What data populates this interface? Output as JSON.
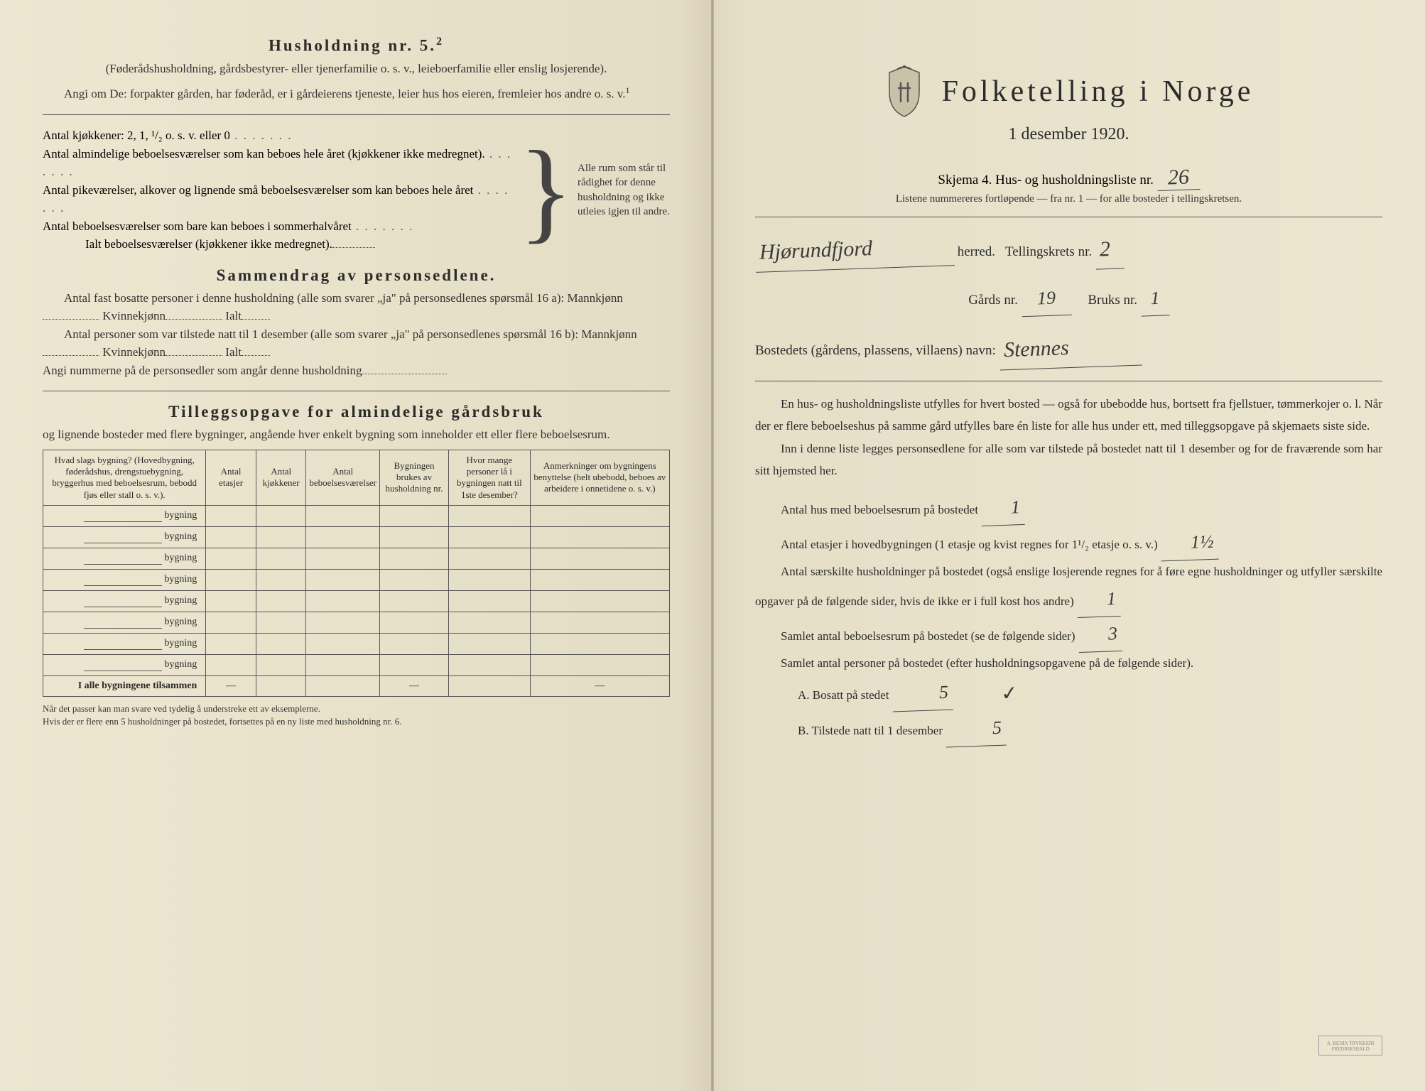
{
  "left": {
    "title": "Husholdning nr. 5.",
    "title_sup": "2",
    "subtitle": "(Føderådshusholdning, gårdsbestyrer- eller tjenerfamilie o. s. v., leieboerfamilie eller enslig losjerende).",
    "angi": "Angi om De: forpakter gården, har føderåd, er i gårdeierens tjeneste, leier hus hos eieren, fremleier hos andre o. s. v.",
    "angi_sup": "1",
    "kjokken_label": "Antal kjøkkener: 2, 1, ¹/₂ o. s. v. eller 0",
    "rooms1": "Antal almindelige beboelsesværelser som kan beboes hele året (kjøkkener ikke medregnet).",
    "rooms2": "Antal pikeværelser, alkover og lignende små beboelsesværelser som kan beboes hele året",
    "rooms3": "Antal beboelsesværelser som bare kan beboes i sommerhalvåret",
    "rooms_total": "Ialt beboelsesværelser (kjøkkener ikke medregnet).",
    "brace_note": "Alle rum som står til rådighet for denne husholdning og ikke utleies igjen til andre.",
    "sammendrag_title": "Sammendrag av personsedlene.",
    "sammendrag1": "Antal fast bosatte personer i denne husholdning (alle som svarer „ja\" på personsedlenes spørsmål 16 a): Mannkjønn",
    "kvinne": "Kvinnekjønn",
    "ialt": "Ialt",
    "sammendrag2": "Antal personer som var tilstede natt til 1 desember (alle som svarer „ja\" på personsedlenes spørsmål 16 b): Mannkjønn",
    "angi_nummer": "Angi nummerne på de personsedler som angår denne husholdning",
    "tillegg_title": "Tilleggsopgave for almindelige gårdsbruk",
    "tillegg_sub": "og lignende bosteder med flere bygninger, angående hver enkelt bygning som inneholder ett eller flere beboelsesrum.",
    "table": {
      "headers": [
        "Hvad slags bygning?\n(Hovedbygning, føderådshus, drengstuebygning, bryggerhus med beboelsesrum, bebodd fjøs eller stall o. s. v.).",
        "Antal etasjer",
        "Antal kjøkkener",
        "Antal beboelsesværelser",
        "Bygningen brukes av husholdning nr.",
        "Hvor mange personer lå i bygningen natt til 1ste desember?",
        "Anmerkninger om bygningens benyttelse (helt ubebodd, beboes av arbeidere i onnetidene o. s. v.)"
      ],
      "row_label": "bygning",
      "rows": 8,
      "total_label": "I alle bygningene tilsammen"
    },
    "footnote": "Når det passer kan man svare ved tydelig å understreke ett av eksemplerne.\nHvis der er flere enn 5 husholdninger på bostedet, fortsettes på en ny liste med husholdning nr. 6."
  },
  "right": {
    "main_title": "Folketelling i Norge",
    "date": "1 desember 1920.",
    "skjema": "Skjema 4.  Hus- og husholdningsliste nr.",
    "skjema_nr": "26",
    "listene": "Listene nummereres fortløpende — fra nr. 1 — for alle bosteder i tellingskretsen.",
    "herred_hand": "Hjørundfjord",
    "herred_label": "herred.",
    "tellingskrets_label": "Tellingskrets nr.",
    "tellingskrets_nr": "2",
    "gards_label": "Gårds nr.",
    "gards_nr": "19",
    "bruks_label": "Bruks nr.",
    "bruks_nr": "1",
    "bosted_label": "Bostedets (gårdens, plassens, villaens) navn:",
    "bosted_hand": "Stennes",
    "para1": "En hus- og husholdningsliste utfylles for hvert bosted — også for ubebodde hus, bortsett fra fjellstuer, tømmerkojer o. l.  Når der er flere beboelseshus på samme gård utfylles bare én liste for alle hus under ett, med tilleggsopgave på skjemaets siste side.",
    "para2": "Inn i denne liste legges personsedlene for alle som var tilstede på bostedet natt til 1 desember og for de fraværende som har sitt hjemsted her.",
    "antal_hus_label": "Antal hus med beboelsesrum på bostedet",
    "antal_hus": "1",
    "etasjer_label": "Antal etasjer i hovedbygningen (1 etasje og kvist regnes for 1¹/₂ etasje o. s. v.)",
    "etasjer": "1½",
    "saerskilte_label": "Antal særskilte husholdninger på bostedet (også enslige losjerende regnes for å føre egne husholdninger og utfyller særskilte opgaver på de følgende sider, hvis de ikke er i full kost hos andre)",
    "saerskilte": "1",
    "samlet_rum_label": "Samlet antal beboelsesrum på bostedet (se de følgende sider)",
    "samlet_rum": "3",
    "samlet_pers_label": "Samlet antal personer på bostedet (efter husholdningsopgavene på de følgende sider).",
    "bosatt_label": "A.  Bosatt på stedet",
    "bosatt": "5",
    "tilstede_label": "B.  Tilstede natt til 1 desember",
    "tilstede": "5",
    "stamp": "A. BENIX TRYKKERI\nFREDRIKSHALD"
  },
  "colors": {
    "paper": "#e8e2cc",
    "ink": "#2b2b2b",
    "handwriting": "#3a3a3a"
  }
}
